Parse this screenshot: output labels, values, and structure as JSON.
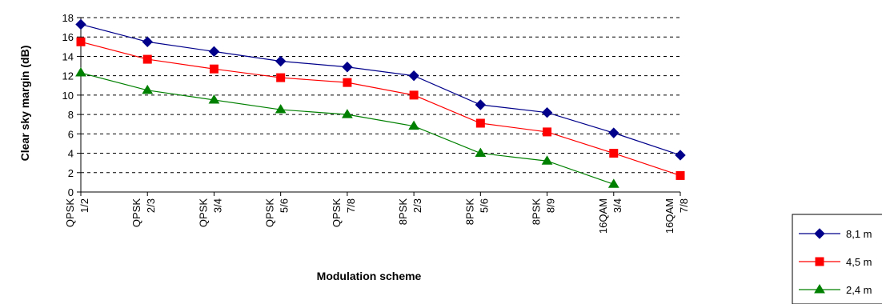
{
  "chart_data": {
    "type": "line",
    "title": "",
    "xlabel": "Modulation scheme",
    "ylabel": "Clear sky margin (dB)",
    "ylim": [
      0,
      18
    ],
    "yticks": [
      0,
      2,
      4,
      6,
      8,
      10,
      12,
      14,
      16,
      18
    ],
    "grid": "horizontal dashed",
    "legend_position": "bottom-right",
    "categories": [
      {
        "mod": "QPSK",
        "rate": "1/2"
      },
      {
        "mod": "QPSK",
        "rate": "2/3"
      },
      {
        "mod": "QPSK",
        "rate": "3/4"
      },
      {
        "mod": "QPSK",
        "rate": "5/6"
      },
      {
        "mod": "QPSK",
        "rate": "7/8"
      },
      {
        "mod": "8PSK",
        "rate": "2/3"
      },
      {
        "mod": "8PSK",
        "rate": "5/6"
      },
      {
        "mod": "8PSK",
        "rate": "8/9"
      },
      {
        "mod": "16QAM",
        "rate": "3/4"
      },
      {
        "mod": "16QAM",
        "rate": "7/8"
      }
    ],
    "series": [
      {
        "name": "8,1 m",
        "color": "#00008B",
        "marker": "diamond",
        "values": [
          17.3,
          15.5,
          14.5,
          13.5,
          12.9,
          12.0,
          9.0,
          8.2,
          6.1,
          3.8
        ]
      },
      {
        "name": "4,5 m",
        "color": "#FF0000",
        "marker": "square",
        "values": [
          15.5,
          13.7,
          12.7,
          11.8,
          11.3,
          10.0,
          7.1,
          6.2,
          4.0,
          1.7
        ]
      },
      {
        "name": "2,4 m",
        "color": "#008000",
        "marker": "triangle",
        "values": [
          12.3,
          10.5,
          9.5,
          8.5,
          8.0,
          6.8,
          4.0,
          3.2,
          0.8,
          null
        ]
      }
    ]
  }
}
